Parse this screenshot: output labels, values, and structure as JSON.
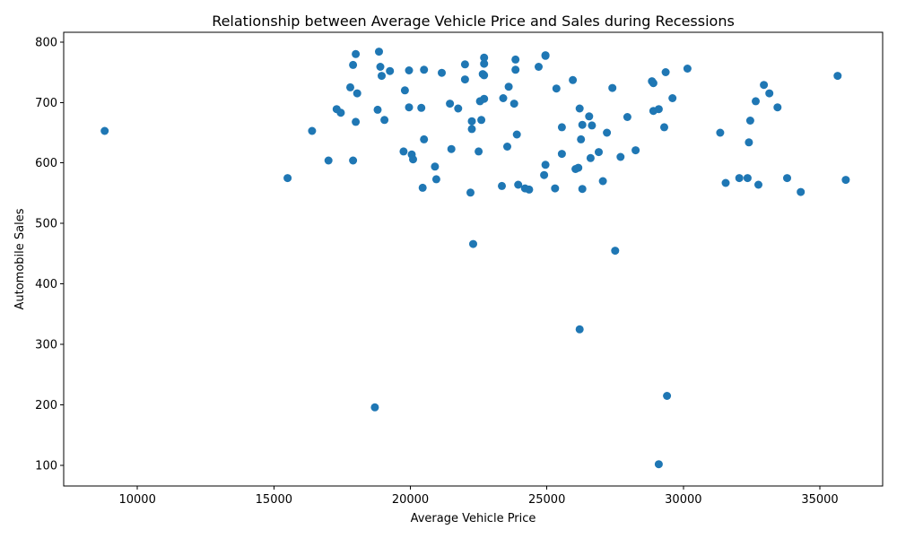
{
  "chart_data": {
    "type": "scatter",
    "title": "Relationship between Average Vehicle Price and Sales during Recessions",
    "xlabel": "Average Vehicle Price",
    "ylabel": "Automobile Sales",
    "xlim": [
      7300,
      37300
    ],
    "ylim": [
      66,
      816
    ],
    "xticks": [
      10000,
      15000,
      20000,
      25000,
      30000,
      35000
    ],
    "yticks": [
      100,
      200,
      300,
      400,
      500,
      600,
      700,
      800
    ],
    "grid": false,
    "marker_color": "#1f77b4",
    "points": [
      [
        8800,
        653
      ],
      [
        15500,
        575
      ],
      [
        16400,
        653
      ],
      [
        17000,
        604
      ],
      [
        17300,
        689
      ],
      [
        17450,
        683
      ],
      [
        17800,
        725
      ],
      [
        17900,
        604
      ],
      [
        17900,
        762
      ],
      [
        18000,
        780
      ],
      [
        18000,
        668
      ],
      [
        18050,
        715
      ],
      [
        18700,
        196
      ],
      [
        18800,
        688
      ],
      [
        18850,
        784
      ],
      [
        18900,
        759
      ],
      [
        18950,
        744
      ],
      [
        19050,
        671
      ],
      [
        19250,
        752
      ],
      [
        19750,
        619
      ],
      [
        19800,
        720
      ],
      [
        19950,
        692
      ],
      [
        19950,
        753
      ],
      [
        20050,
        614
      ],
      [
        20100,
        606
      ],
      [
        20400,
        691
      ],
      [
        20450,
        559
      ],
      [
        20500,
        754
      ],
      [
        20500,
        639
      ],
      [
        20900,
        594
      ],
      [
        20950,
        573
      ],
      [
        21150,
        749
      ],
      [
        21450,
        698
      ],
      [
        21500,
        623
      ],
      [
        21750,
        690
      ],
      [
        22000,
        763
      ],
      [
        22000,
        738
      ],
      [
        22200,
        551
      ],
      [
        22250,
        656
      ],
      [
        22250,
        669
      ],
      [
        22300,
        466
      ],
      [
        22500,
        619
      ],
      [
        22550,
        702
      ],
      [
        22600,
        671
      ],
      [
        22650,
        747
      ],
      [
        22700,
        774
      ],
      [
        22700,
        764
      ],
      [
        22700,
        706
      ],
      [
        22700,
        745
      ],
      [
        23350,
        562
      ],
      [
        23400,
        707
      ],
      [
        23550,
        627
      ],
      [
        23600,
        726
      ],
      [
        23800,
        698
      ],
      [
        23850,
        771
      ],
      [
        23850,
        754
      ],
      [
        23900,
        647
      ],
      [
        23950,
        564
      ],
      [
        24200,
        558
      ],
      [
        24350,
        556
      ],
      [
        24700,
        759
      ],
      [
        24900,
        580
      ],
      [
        24950,
        777
      ],
      [
        24950,
        778
      ],
      [
        24950,
        597
      ],
      [
        25300,
        558
      ],
      [
        25350,
        723
      ],
      [
        25550,
        659
      ],
      [
        25550,
        615
      ],
      [
        25950,
        737
      ],
      [
        26050,
        590
      ],
      [
        26150,
        592
      ],
      [
        26200,
        325
      ],
      [
        26200,
        690
      ],
      [
        26250,
        639
      ],
      [
        26300,
        557
      ],
      [
        26300,
        663
      ],
      [
        26550,
        677
      ],
      [
        26600,
        608
      ],
      [
        26650,
        662
      ],
      [
        26900,
        618
      ],
      [
        27050,
        570
      ],
      [
        27200,
        650
      ],
      [
        27400,
        724
      ],
      [
        27500,
        455
      ],
      [
        27700,
        610
      ],
      [
        27950,
        676
      ],
      [
        28250,
        621
      ],
      [
        28850,
        735
      ],
      [
        28900,
        732
      ],
      [
        28900,
        686
      ],
      [
        29100,
        102
      ],
      [
        29100,
        689
      ],
      [
        29300,
        659
      ],
      [
        29350,
        750
      ],
      [
        29400,
        215
      ],
      [
        29600,
        707
      ],
      [
        30150,
        756
      ],
      [
        31350,
        650
      ],
      [
        31550,
        567
      ],
      [
        32050,
        575
      ],
      [
        32350,
        575
      ],
      [
        32400,
        634
      ],
      [
        32450,
        670
      ],
      [
        32650,
        702
      ],
      [
        32750,
        564
      ],
      [
        32950,
        729
      ],
      [
        33150,
        715
      ],
      [
        33450,
        692
      ],
      [
        33800,
        575
      ],
      [
        34300,
        552
      ],
      [
        35650,
        744
      ],
      [
        35950,
        572
      ]
    ]
  }
}
